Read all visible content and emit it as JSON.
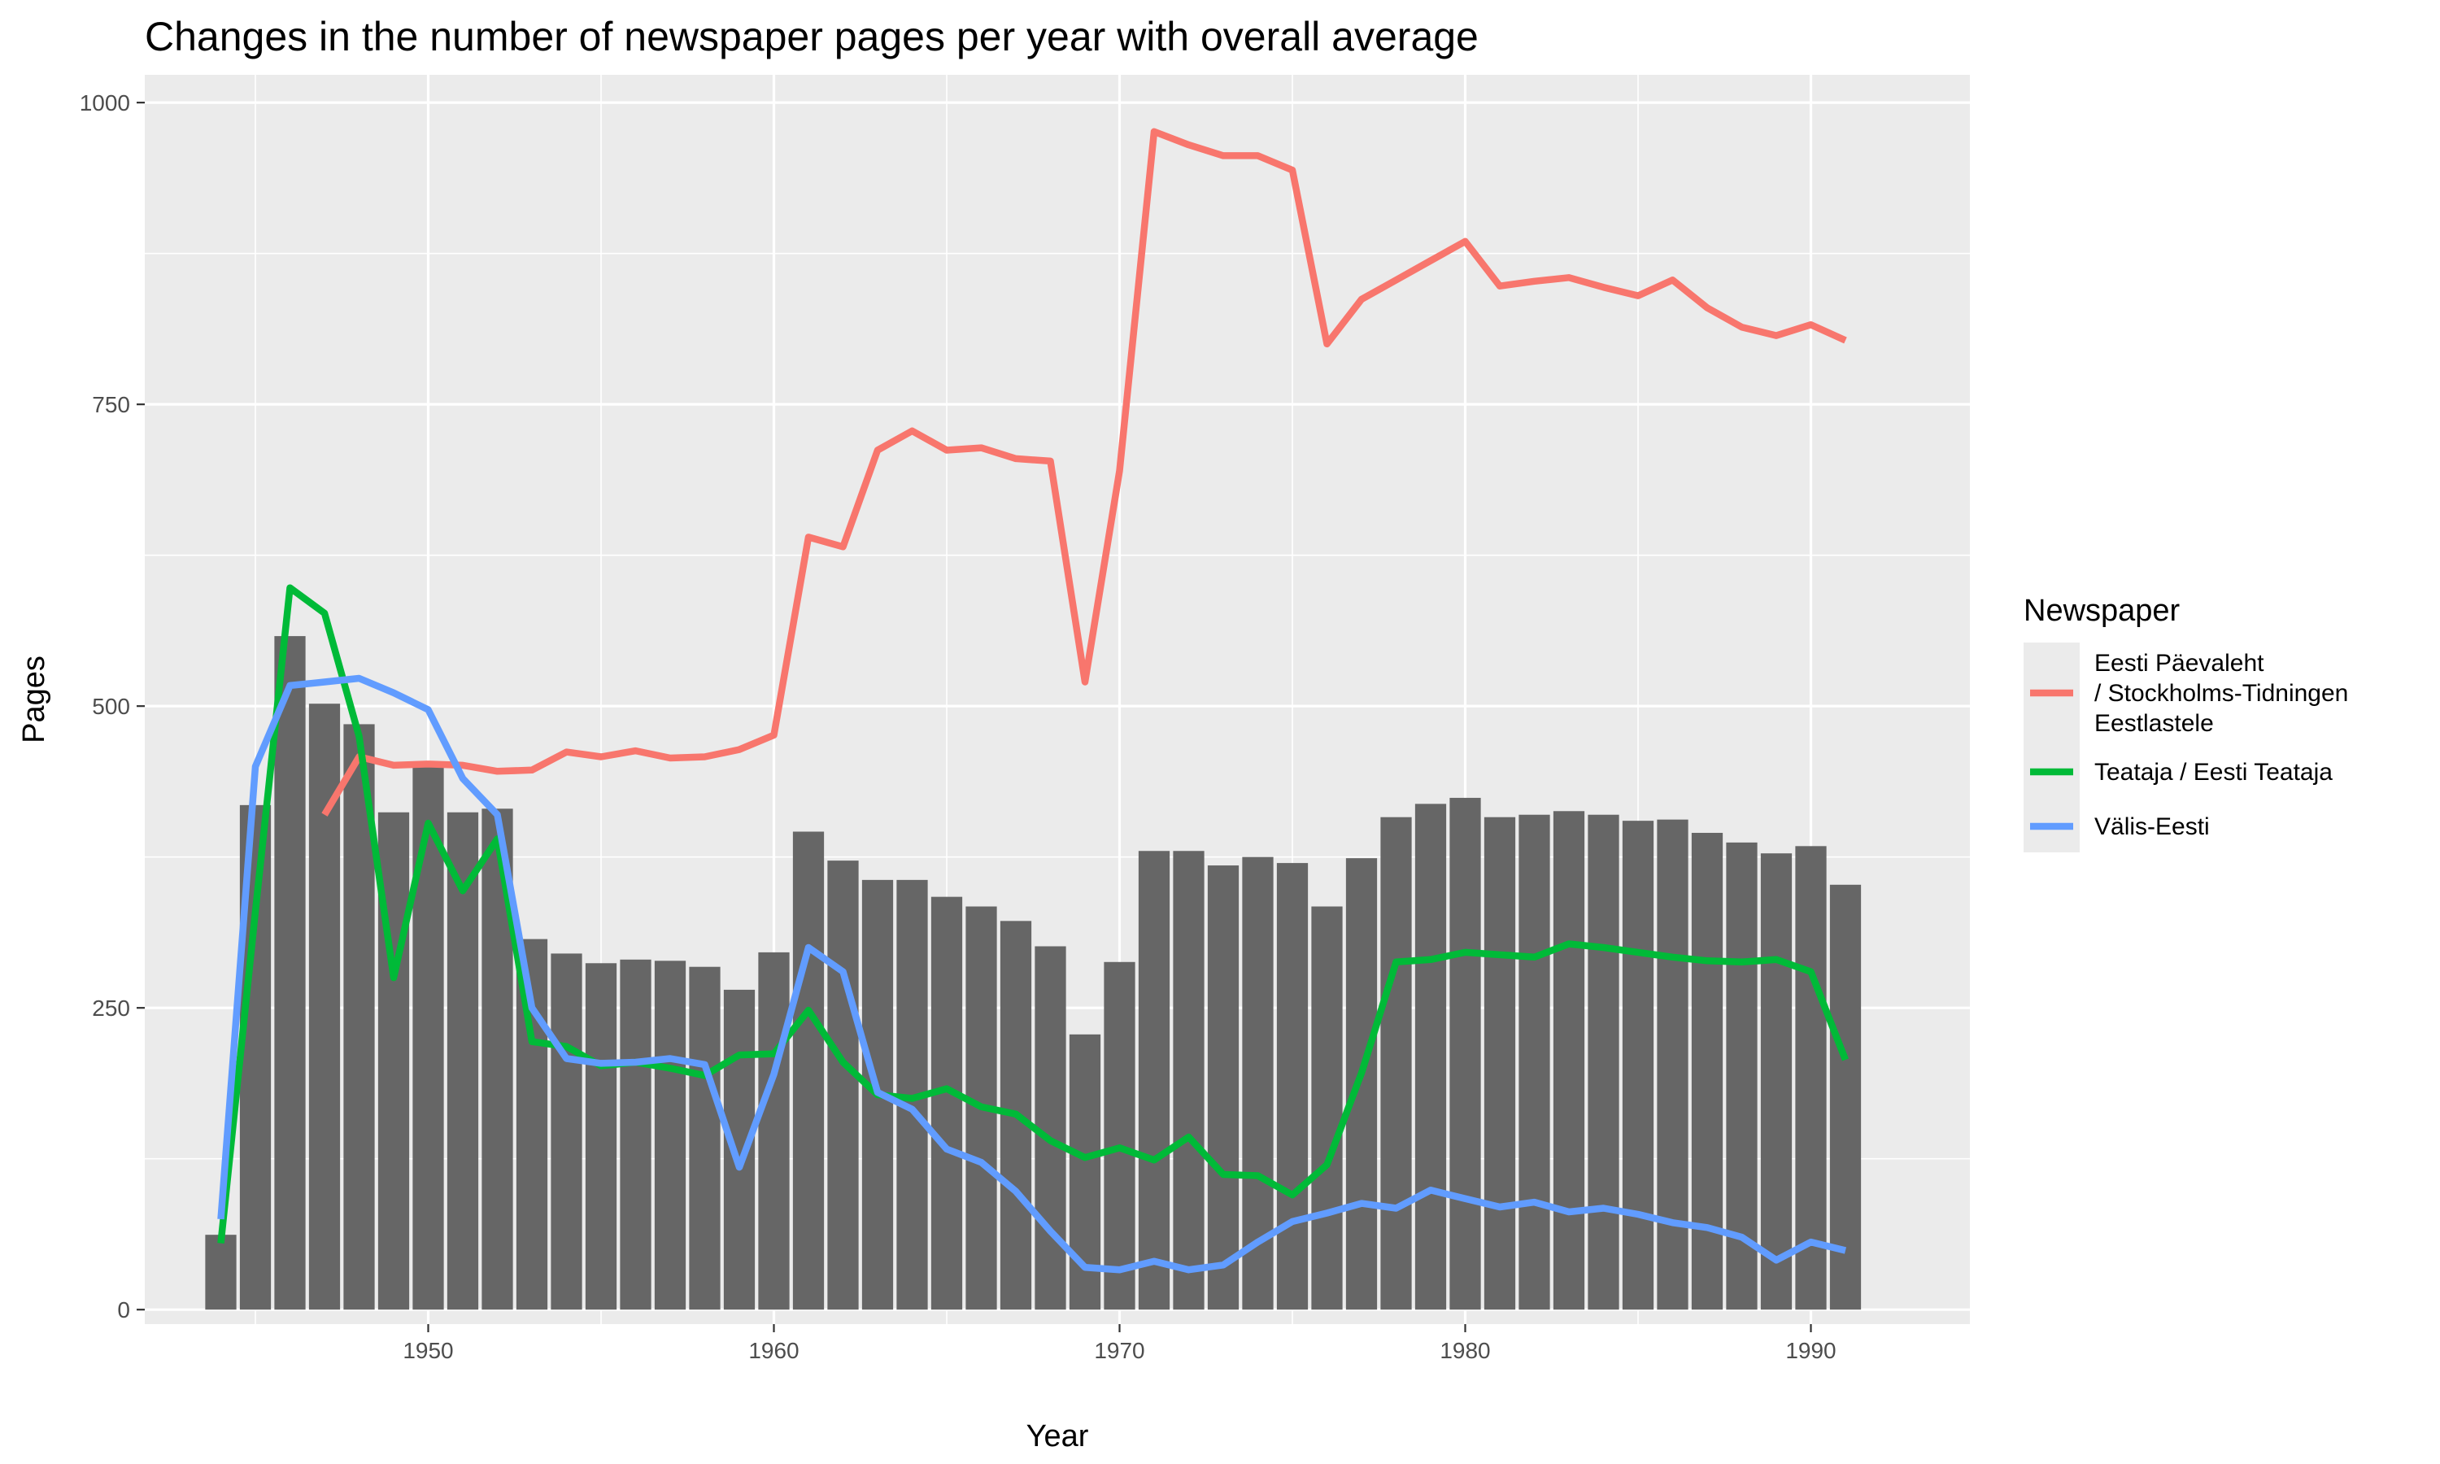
{
  "chart_data": {
    "type": "bar",
    "title": "Changes in the number of newspaper pages per year with overall average",
    "xlabel": "Year",
    "ylabel": "Pages",
    "xlim": [
      1941.8,
      1994.6
    ],
    "ylim": [
      -12,
      1023
    ],
    "x_ticks": [
      1950,
      1960,
      1970,
      1980,
      1990
    ],
    "y_ticks": [
      0,
      250,
      500,
      750,
      1000
    ],
    "grid": true,
    "legend_position": "right",
    "legend_title": "Newspaper",
    "colors": {
      "panel": "#ebebeb",
      "grid": "#ffffff",
      "bars": "#666666",
      "series": [
        "#f8766d",
        "#00ba38",
        "#619cff"
      ]
    },
    "bars": {
      "x": [
        1944,
        1945,
        1946,
        1947,
        1948,
        1949,
        1950,
        1951,
        1952,
        1953,
        1954,
        1955,
        1956,
        1957,
        1958,
        1959,
        1960,
        1961,
        1962,
        1963,
        1964,
        1965,
        1966,
        1967,
        1968,
        1969,
        1970,
        1971,
        1972,
        1973,
        1974,
        1975,
        1976,
        1977,
        1978,
        1979,
        1980,
        1981,
        1982,
        1983,
        1984,
        1985,
        1986,
        1987,
        1988,
        1989,
        1990,
        1991
      ],
      "values": [
        62,
        418,
        558,
        502,
        485,
        412,
        452,
        412,
        415,
        307,
        295,
        287,
        290,
        289,
        284,
        265,
        296,
        396,
        372,
        356,
        356,
        342,
        334,
        322,
        301,
        228,
        288,
        380,
        380,
        368,
        375,
        370,
        334,
        374,
        408,
        419,
        424,
        408,
        410,
        413,
        410,
        405,
        406,
        395,
        387,
        378,
        384,
        352
      ]
    },
    "series": [
      {
        "name": "Eesti Päevaleht\n/ Stockholms-Tidningen\nEestlastele",
        "x": [
          1947,
          1948,
          1949,
          1950,
          1951,
          1952,
          1953,
          1954,
          1955,
          1956,
          1957,
          1958,
          1959,
          1960,
          1961,
          1962,
          1963,
          1964,
          1965,
          1966,
          1967,
          1968,
          1969,
          1970,
          1971,
          1972,
          1973,
          1974,
          1975,
          1976,
          1977,
          1978,
          1979,
          1980,
          1981,
          1982,
          1983,
          1984,
          1985,
          1986,
          1987,
          1988,
          1989,
          1990,
          1991
        ],
        "values": [
          410,
          458,
          451,
          452,
          451,
          446,
          447,
          462,
          458,
          463,
          457,
          458,
          464,
          476,
          640,
          632,
          712,
          728,
          712,
          714,
          705,
          703,
          520,
          695,
          976,
          965,
          956,
          956,
          944,
          800,
          837,
          853,
          869,
          885,
          848,
          852,
          855,
          847,
          840,
          853,
          830,
          814,
          807,
          816,
          803
        ]
      },
      {
        "name": "Teataja / Eesti Teataja",
        "x": [
          1944,
          1945,
          1946,
          1947,
          1948,
          1949,
          1950,
          1951,
          1952,
          1953,
          1954,
          1955,
          1956,
          1957,
          1958,
          1959,
          1960,
          1961,
          1962,
          1963,
          1964,
          1965,
          1966,
          1967,
          1968,
          1969,
          1970,
          1971,
          1972,
          1973,
          1974,
          1975,
          1976,
          1977,
          1978,
          1979,
          1980,
          1981,
          1982,
          1983,
          1984,
          1985,
          1986,
          1987,
          1988,
          1989,
          1990,
          1991
        ],
        "values": [
          55,
          330,
          598,
          577,
          475,
          275,
          403,
          347,
          390,
          222,
          218,
          202,
          205,
          200,
          194,
          211,
          212,
          248,
          205,
          178,
          175,
          183,
          168,
          162,
          140,
          126,
          134,
          124,
          143,
          112,
          111,
          95,
          120,
          196,
          288,
          290,
          296,
          294,
          292,
          303,
          300,
          296,
          292,
          289,
          288,
          290,
          280,
          207
        ]
      },
      {
        "name": "Välis-Eesti",
        "x": [
          1944,
          1945,
          1946,
          1947,
          1948,
          1949,
          1950,
          1951,
          1952,
          1953,
          1954,
          1955,
          1956,
          1957,
          1958,
          1959,
          1960,
          1961,
          1962,
          1963,
          1964,
          1965,
          1966,
          1967,
          1968,
          1969,
          1970,
          1971,
          1972,
          1973,
          1974,
          1975,
          1976,
          1977,
          1978,
          1979,
          1980,
          1981,
          1982,
          1983,
          1984,
          1985,
          1986,
          1987,
          1988,
          1989,
          1990,
          1991
        ],
        "values": [
          75,
          450,
          517,
          520,
          523,
          511,
          497,
          440,
          410,
          250,
          208,
          204,
          205,
          208,
          203,
          118,
          195,
          300,
          280,
          180,
          166,
          133,
          122,
          98,
          65,
          35,
          33,
          40,
          33,
          37,
          56,
          73,
          80,
          88,
          84,
          99,
          92,
          85,
          89,
          81,
          84,
          79,
          72,
          68,
          60,
          41,
          56,
          49
        ]
      }
    ]
  }
}
